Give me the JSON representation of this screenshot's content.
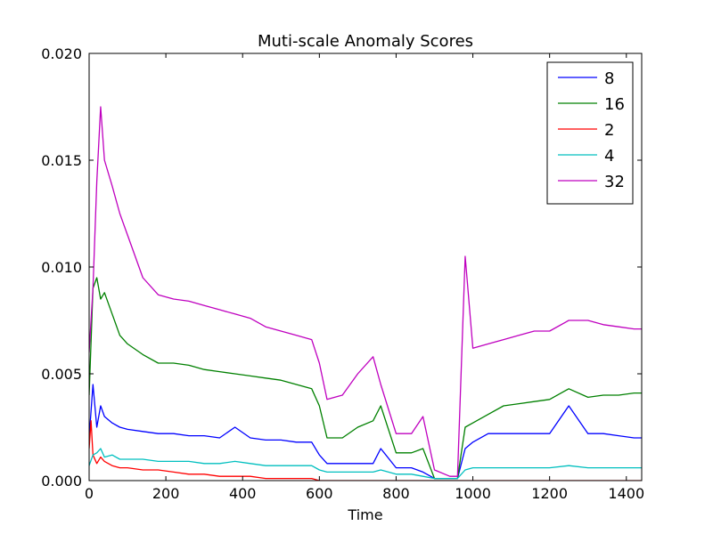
{
  "chart_data": {
    "type": "line",
    "title": "Muti-scale Anomaly Scores",
    "xlabel": "Time",
    "ylabel": "",
    "xlim": [
      0,
      1440
    ],
    "ylim": [
      0,
      0.02
    ],
    "xticks": [
      0,
      200,
      400,
      600,
      800,
      1000,
      1200,
      1400
    ],
    "xtick_labels": [
      "0",
      "200",
      "400",
      "600",
      "800",
      "1000",
      "1200",
      "1400"
    ],
    "yticks": [
      0,
      0.005,
      0.01,
      0.015,
      0.02
    ],
    "ytick_labels": [
      "0.000",
      "0.005",
      "0.010",
      "0.015",
      "0.020"
    ],
    "grid": false,
    "legend_position": "top-right",
    "series": [
      {
        "name": "8",
        "color": "#0000ff",
        "x": [
          0,
          10,
          20,
          30,
          40,
          60,
          80,
          100,
          140,
          180,
          220,
          260,
          300,
          340,
          380,
          420,
          460,
          500,
          540,
          580,
          600,
          620,
          660,
          700,
          740,
          760,
          800,
          840,
          870,
          900,
          940,
          960,
          980,
          1000,
          1040,
          1080,
          1120,
          1160,
          1200,
          1250,
          1300,
          1340,
          1380,
          1420,
          1440
        ],
        "y": [
          0.002,
          0.0045,
          0.0025,
          0.0035,
          0.003,
          0.0027,
          0.0025,
          0.0024,
          0.0023,
          0.0022,
          0.0022,
          0.0021,
          0.0021,
          0.002,
          0.0025,
          0.002,
          0.0019,
          0.0019,
          0.0018,
          0.0018,
          0.0012,
          0.0008,
          0.0008,
          0.0008,
          0.0008,
          0.0015,
          0.0006,
          0.0006,
          0.0004,
          0.0001,
          0.0001,
          0.0001,
          0.0015,
          0.0018,
          0.0022,
          0.0022,
          0.0022,
          0.0022,
          0.0022,
          0.0035,
          0.0022,
          0.0022,
          0.0021,
          0.002,
          0.002
        ]
      },
      {
        "name": "16",
        "color": "#008000",
        "x": [
          0,
          10,
          20,
          30,
          40,
          60,
          80,
          100,
          140,
          180,
          220,
          260,
          300,
          340,
          380,
          420,
          460,
          500,
          540,
          580,
          600,
          620,
          660,
          700,
          740,
          760,
          800,
          840,
          870,
          900,
          940,
          960,
          980,
          1000,
          1040,
          1080,
          1120,
          1160,
          1200,
          1250,
          1300,
          1340,
          1380,
          1420,
          1440
        ],
        "y": [
          0.004,
          0.009,
          0.0095,
          0.0085,
          0.0088,
          0.0078,
          0.0068,
          0.0064,
          0.0059,
          0.0055,
          0.0055,
          0.0054,
          0.0052,
          0.0051,
          0.005,
          0.0049,
          0.0048,
          0.0047,
          0.0045,
          0.0043,
          0.0035,
          0.002,
          0.002,
          0.0025,
          0.0028,
          0.0035,
          0.0013,
          0.0013,
          0.0015,
          0.0001,
          0.0001,
          0.0001,
          0.0025,
          0.0027,
          0.0031,
          0.0035,
          0.0036,
          0.0037,
          0.0038,
          0.0043,
          0.0039,
          0.004,
          0.004,
          0.0041,
          0.0041
        ]
      },
      {
        "name": "2",
        "color": "#ff0000",
        "x": [
          0,
          5,
          10,
          20,
          30,
          40,
          60,
          80,
          100,
          140,
          180,
          220,
          260,
          300,
          340,
          380,
          420,
          460,
          500,
          540,
          580,
          600,
          700,
          800,
          900,
          1000,
          1200,
          1440
        ],
        "y": [
          0.0015,
          0.0028,
          0.0012,
          0.0008,
          0.0011,
          0.0009,
          0.0007,
          0.0006,
          0.0006,
          0.0005,
          0.0005,
          0.0004,
          0.0003,
          0.0003,
          0.0002,
          0.0002,
          0.0002,
          0.0001,
          0.0001,
          0.0001,
          0.0001,
          0.0,
          0.0,
          0.0,
          0.0,
          0.0,
          0.0,
          0.0
        ]
      },
      {
        "name": "4",
        "color": "#00bfbf",
        "x": [
          0,
          10,
          20,
          30,
          40,
          60,
          80,
          100,
          140,
          180,
          220,
          260,
          300,
          340,
          380,
          420,
          460,
          500,
          540,
          580,
          600,
          620,
          660,
          700,
          740,
          760,
          800,
          840,
          870,
          900,
          940,
          960,
          980,
          1000,
          1040,
          1080,
          1120,
          1160,
          1200,
          1250,
          1300,
          1340,
          1380,
          1420,
          1440
        ],
        "y": [
          0.0007,
          0.0012,
          0.0013,
          0.0015,
          0.0011,
          0.0012,
          0.001,
          0.001,
          0.001,
          0.0009,
          0.0009,
          0.0009,
          0.0008,
          0.0008,
          0.0009,
          0.0008,
          0.0007,
          0.0007,
          0.0007,
          0.0007,
          0.0005,
          0.0004,
          0.0004,
          0.0004,
          0.0004,
          0.0005,
          0.0003,
          0.0003,
          0.0002,
          0.0001,
          0.0001,
          0.0001,
          0.0005,
          0.0006,
          0.0006,
          0.0006,
          0.0006,
          0.0006,
          0.0006,
          0.0007,
          0.0006,
          0.0006,
          0.0006,
          0.0006,
          0.0006
        ]
      },
      {
        "name": "32",
        "color": "#bf00bf",
        "x": [
          0,
          10,
          20,
          30,
          40,
          60,
          80,
          100,
          140,
          180,
          220,
          260,
          300,
          340,
          380,
          420,
          460,
          500,
          540,
          580,
          600,
          620,
          660,
          700,
          740,
          760,
          800,
          840,
          870,
          900,
          940,
          960,
          980,
          1000,
          1040,
          1080,
          1120,
          1160,
          1200,
          1250,
          1300,
          1340,
          1380,
          1420,
          1440
        ],
        "y": [
          0.006,
          0.009,
          0.014,
          0.0175,
          0.015,
          0.0138,
          0.0125,
          0.0115,
          0.0095,
          0.0087,
          0.0085,
          0.0084,
          0.0082,
          0.008,
          0.0078,
          0.0076,
          0.0072,
          0.007,
          0.0068,
          0.0066,
          0.0055,
          0.0038,
          0.004,
          0.005,
          0.0058,
          0.0045,
          0.0022,
          0.0022,
          0.003,
          0.0005,
          0.0002,
          0.0002,
          0.0105,
          0.0062,
          0.0064,
          0.0066,
          0.0068,
          0.007,
          0.007,
          0.0075,
          0.0075,
          0.0073,
          0.0072,
          0.0071,
          0.0071
        ]
      }
    ]
  }
}
